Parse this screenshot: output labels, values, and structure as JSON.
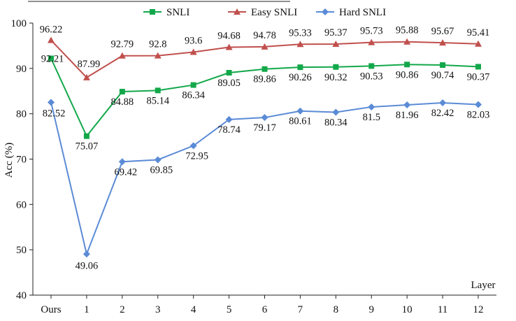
{
  "chart_data": {
    "type": "line",
    "title": "",
    "xlabel": "Layer",
    "ylabel": "Acc (%)",
    "ylim": [
      40,
      100
    ],
    "yticks": [
      40,
      50,
      60,
      70,
      80,
      90,
      100
    ],
    "categories": [
      "Ours",
      "1",
      "2",
      "3",
      "4",
      "5",
      "6",
      "7",
      "8",
      "9",
      "10",
      "11",
      "12"
    ],
    "grid": false,
    "legend_position": "top",
    "series": [
      {
        "name": "SNLI",
        "color": "#12a84a",
        "marker": "square",
        "values": [
          92.21,
          75.07,
          84.88,
          85.14,
          86.34,
          89.05,
          89.86,
          90.26,
          90.32,
          90.53,
          90.86,
          90.74,
          90.37
        ],
        "labels": [
          "92.21",
          "75.07",
          "84.88",
          "85.14",
          "86.34",
          "89.05",
          "89.86",
          "90.26",
          "90.32",
          "90.53",
          "90.86",
          "90.74",
          "90.37"
        ]
      },
      {
        "name": "Easy SNLI",
        "color": "#c0504d",
        "marker": "triangle",
        "values": [
          96.22,
          87.99,
          92.79,
          92.8,
          93.6,
          94.68,
          94.78,
          95.33,
          95.37,
          95.73,
          95.88,
          95.67,
          95.41
        ],
        "labels": [
          "96.22",
          "87.99",
          "92.79",
          "92.8",
          "93.6",
          "94.68",
          "94.78",
          "95.33",
          "95.37",
          "95.73",
          "95.88",
          "95.67",
          "95.41"
        ]
      },
      {
        "name": "Hard SNLI",
        "color": "#5b8bd6",
        "marker": "diamond",
        "values": [
          82.52,
          49.06,
          69.42,
          69.85,
          72.95,
          78.74,
          79.17,
          80.61,
          80.34,
          81.5,
          81.96,
          82.42,
          82.03
        ],
        "labels": [
          "82.52",
          "49.06",
          "69.42",
          "69.85",
          "72.95",
          "78.74",
          "79.17",
          "80.61",
          "80.34",
          "81.5",
          "81.96",
          "82.42",
          "82.03"
        ]
      }
    ]
  }
}
